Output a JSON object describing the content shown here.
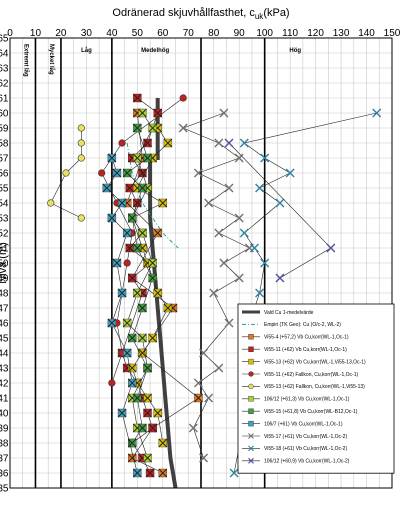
{
  "chart_data": {
    "type": "scatter",
    "title": "Odränerad skjuvhållfasthet, c_uk(kPa)",
    "title_main": "Odränerad skjuvhållfasthet, c",
    "title_sub": "uk",
    "title_unit": "(kPa)",
    "ylabel": "Nivå (m)",
    "xlim": [
      0,
      150
    ],
    "ylim": [
      35,
      65
    ],
    "y_reversed": true,
    "xticks": [
      "0",
      "5",
      "10",
      "15",
      "20",
      "25",
      "30",
      "35",
      "40",
      "45",
      "50",
      "55",
      "60",
      "65",
      "70",
      "75",
      "80",
      "85",
      "90",
      "95",
      "100",
      "105",
      "110",
      "115",
      "120",
      "125",
      "130",
      "135",
      "140",
      "145",
      "150"
    ],
    "yticks": [
      "65",
      "64",
      "63",
      "62",
      "61",
      "60",
      "59",
      "58",
      "57",
      "56",
      "55",
      "54",
      "53",
      "52",
      "51",
      "50",
      "49",
      "48",
      "47",
      "46",
      "45",
      "44",
      "43",
      "42",
      "41",
      "40",
      "39",
      "38",
      "37",
      "36",
      "35"
    ],
    "grid": true,
    "zone_lines": [
      10,
      20,
      40,
      75,
      100
    ],
    "zones": [
      {
        "label": "Extremt låg",
        "x": 5,
        "vertical": true
      },
      {
        "label": "Mycket låg",
        "x": 15,
        "vertical": true
      },
      {
        "label": "Låg",
        "x": 30,
        "vertical": false
      },
      {
        "label": "Medelhög",
        "x": 57,
        "vertical": false
      },
      {
        "label": "Hög",
        "x": 112,
        "vertical": false
      }
    ],
    "colors": {
      "valt": "#404040",
      "empiri": "#20a090",
      "s4": "#e07820",
      "s11a": "#c02020",
      "s11b": "#d8c000",
      "s106_12": "#b0d030",
      "s15": "#40a040",
      "s106_7": "#40a0c0",
      "s17": "#a0a0a0",
      "s18": "#404060",
      "s106_12b": "#5050a0"
    },
    "legend_placement": "bottom-right",
    "series": [
      {
        "name": "Vald Cu 1-medelvärde",
        "style": "thickline",
        "color": "#404040",
        "x": [
          58,
          58,
          55,
          55,
          56,
          57,
          58,
          59,
          60,
          61,
          62,
          63,
          64,
          65
        ],
        "y": [
          61.0,
          57.0,
          57.0,
          53.0,
          51.0,
          49.0,
          47.0,
          45.0,
          43.0,
          41.0,
          39.0,
          37.0,
          36.0,
          35.0
        ]
      },
      {
        "name": "Empiri (TK Geo): Cu (O/c-2, WL-2)",
        "style": "dashline",
        "color": "#20a090",
        "x": [
          46,
          48,
          52,
          56,
          60,
          66
        ],
        "y": [
          58.0,
          56.0,
          54.0,
          53.0,
          52.0,
          51.0
        ]
      },
      {
        "name": "Vi55-4 (+57,2) Vb Cu,korr(WL-1,Oc-1)",
        "style": "square",
        "color": "#e07820",
        "x": [
          50,
          52,
          46,
          58,
          48,
          64,
          52,
          74,
          56,
          48,
          60
        ],
        "y": [
          60.0,
          57.0,
          54.0,
          52.0,
          49.0,
          47.0,
          44.0,
          41.0,
          39.0,
          37.0,
          36.0
        ]
      },
      {
        "name": "Vi55-11 (+62) Vb Cu,korr(WL-1,Oc-1)",
        "style": "square",
        "color": "#c02020",
        "x": [
          50,
          58,
          54,
          48,
          52,
          47,
          50,
          48,
          52,
          47,
          55,
          48,
          52,
          44,
          46,
          50,
          52,
          54,
          56,
          48,
          52,
          55
        ],
        "y": [
          61.0,
          60.0,
          58.0,
          57.0,
          56.0,
          55.0,
          54.0,
          53.0,
          52.0,
          51.0,
          50.0,
          49.0,
          48.0,
          44.0,
          43.0,
          42.0,
          41.0,
          40.0,
          39.0,
          38.0,
          37.0,
          36.0
        ]
      },
      {
        "name": "Vi55-13 (+62) Vb Cu,korr(WL-1,Vi55-13,Oc-1)",
        "style": "square",
        "color": "#d8c000",
        "x": [
          58,
          62,
          56,
          50,
          60,
          48,
          52,
          54,
          58,
          62,
          56,
          52,
          48,
          50,
          54,
          58,
          60
        ],
        "y": [
          59.0,
          58.0,
          57.0,
          55.0,
          54.0,
          53.0,
          51.0,
          50.0,
          48.0,
          47.0,
          45.0,
          44.0,
          43.0,
          42.0,
          41.0,
          40.0,
          38.0
        ]
      },
      {
        "name": "Vi55-11 (+62) Fallkon, Cu,korr(WL-1,Oc-1)",
        "style": "circle",
        "color": "#c02020",
        "x": [
          68,
          44,
          36,
          42,
          48,
          46,
          44,
          42,
          44,
          40
        ],
        "y": [
          61.0,
          58.0,
          56.0,
          54.0,
          52.0,
          50.0,
          48.0,
          46.0,
          44.0,
          42.0
        ]
      },
      {
        "name": "Vi55-13 (+62) Fallkon, Cu,korr(WL-1,Vi55-13)",
        "style": "circle",
        "color": "#e8e060",
        "x": [
          28,
          28,
          28,
          22,
          16,
          28
        ],
        "y": [
          59.0,
          58.0,
          57.0,
          56.0,
          54.0,
          53.0
        ]
      },
      {
        "name": "106/12 (+61,3) Vb Cu,korr(WL-1,Oc-1)",
        "style": "square",
        "color": "#b0d030",
        "x": [
          52,
          56,
          50,
          54,
          48,
          52,
          56,
          50,
          46,
          52,
          54,
          48,
          50,
          54
        ],
        "y": [
          60.0,
          59.0,
          57.0,
          55.0,
          53.0,
          52.0,
          50.0,
          48.0,
          46.0,
          45.0,
          43.0,
          41.0,
          39.0,
          37.0
        ]
      },
      {
        "name": "Vi55-15 (+61,8) Vb Cu,korr(WL-B12,Oc-1)",
        "style": "square",
        "color": "#40a040",
        "x": [
          50,
          54,
          46,
          52,
          48,
          50,
          56,
          52,
          48,
          54,
          50,
          52,
          48
        ],
        "y": [
          59.0,
          57.0,
          56.0,
          55.0,
          53.0,
          51.0,
          49.0,
          47.0,
          45.0,
          43.0,
          41.0,
          39.0,
          38.0
        ]
      },
      {
        "name": "106/7 (+61) Vb Cu,korr(WL-1,Oc-1)",
        "style": "square",
        "color": "#40a0c0",
        "x": [
          40,
          42,
          38,
          44,
          40,
          46,
          42,
          44,
          40,
          46,
          48,
          44,
          50
        ],
        "y": [
          57.0,
          56.0,
          55.0,
          54.0,
          53.0,
          52.0,
          50.0,
          48.0,
          46.0,
          44.0,
          42.0,
          40.0,
          36.0
        ]
      },
      {
        "name": "Vi55-17 (+61) Vb Cu,korr(WL-1,Oc-2)",
        "style": "x",
        "color": "#707070",
        "x": [
          84,
          68,
          82,
          90,
          74,
          86,
          78,
          90,
          82,
          94,
          84,
          90,
          80,
          86,
          76,
          82,
          74,
          78,
          72,
          76
        ],
        "y": [
          60.0,
          59.0,
          58.0,
          57.0,
          56.0,
          55.0,
          54.0,
          53.0,
          52.0,
          51.0,
          50.0,
          49.0,
          48.0,
          46.0,
          44.0,
          43.0,
          42.0,
          41.0,
          39.0,
          37.0
        ]
      },
      {
        "name": "Vi55-18 (+61) Vb Cu,korr(WL-1,Oc-2)",
        "style": "x",
        "color": "#3080a0",
        "x": [
          144,
          92,
          100,
          110,
          98,
          106,
          92,
          96,
          100,
          98,
          92,
          96,
          88
        ],
        "y": [
          60.0,
          58.0,
          57.0,
          56.0,
          55.0,
          54.0,
          52.0,
          51.0,
          50.0,
          48.0,
          45.0,
          43.0,
          36.0
        ]
      },
      {
        "name": "106/12 (+60,9) Vb Cu,korr(WL-1,Oc-2)",
        "style": "x",
        "color": "#5050a0",
        "x": [
          86,
          126,
          106
        ],
        "y": [
          58.0,
          51.0,
          49.0
        ]
      }
    ]
  }
}
